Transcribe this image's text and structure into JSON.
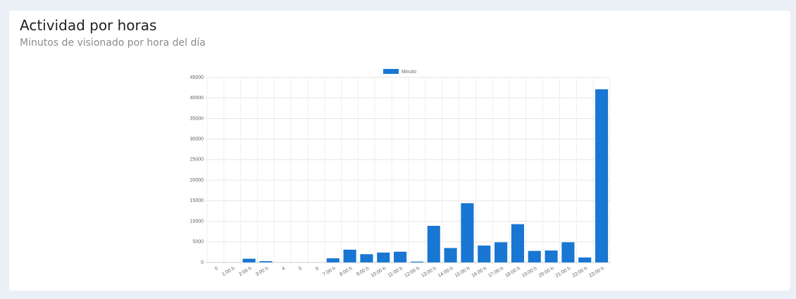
{
  "header": {
    "title": "Actividad por horas",
    "subtitle": "Minutos de visionado por hora del día"
  },
  "chart_data": {
    "type": "bar",
    "categories": [
      "0",
      "1:00 h",
      "2:00 h",
      "3:00 h",
      "4",
      "5",
      "6",
      "7:00 h",
      "8:00 h",
      "9:00 h",
      "10:00 h",
      "11:00 h",
      "12:00 h",
      "13:00 h",
      "14:00 h",
      "15:00 h",
      "16:00 h",
      "17:00 h",
      "18:00 h",
      "19:00 h",
      "20:00 h",
      "21:00 h",
      "22:00 h",
      "23:00 h"
    ],
    "series": [
      {
        "name": "Minuto",
        "color": "#1976d2",
        "values": [
          0,
          0,
          900,
          300,
          0,
          0,
          0,
          1000,
          3100,
          2000,
          2400,
          2600,
          200,
          8900,
          3500,
          14400,
          4100,
          4900,
          9300,
          2800,
          2900,
          4900,
          1200,
          42100
        ]
      }
    ],
    "ylim": [
      0,
      45000
    ],
    "yticks": [
      0,
      5000,
      10000,
      15000,
      20000,
      25000,
      30000,
      35000,
      40000,
      45000
    ],
    "grid": true,
    "legend": "top"
  }
}
